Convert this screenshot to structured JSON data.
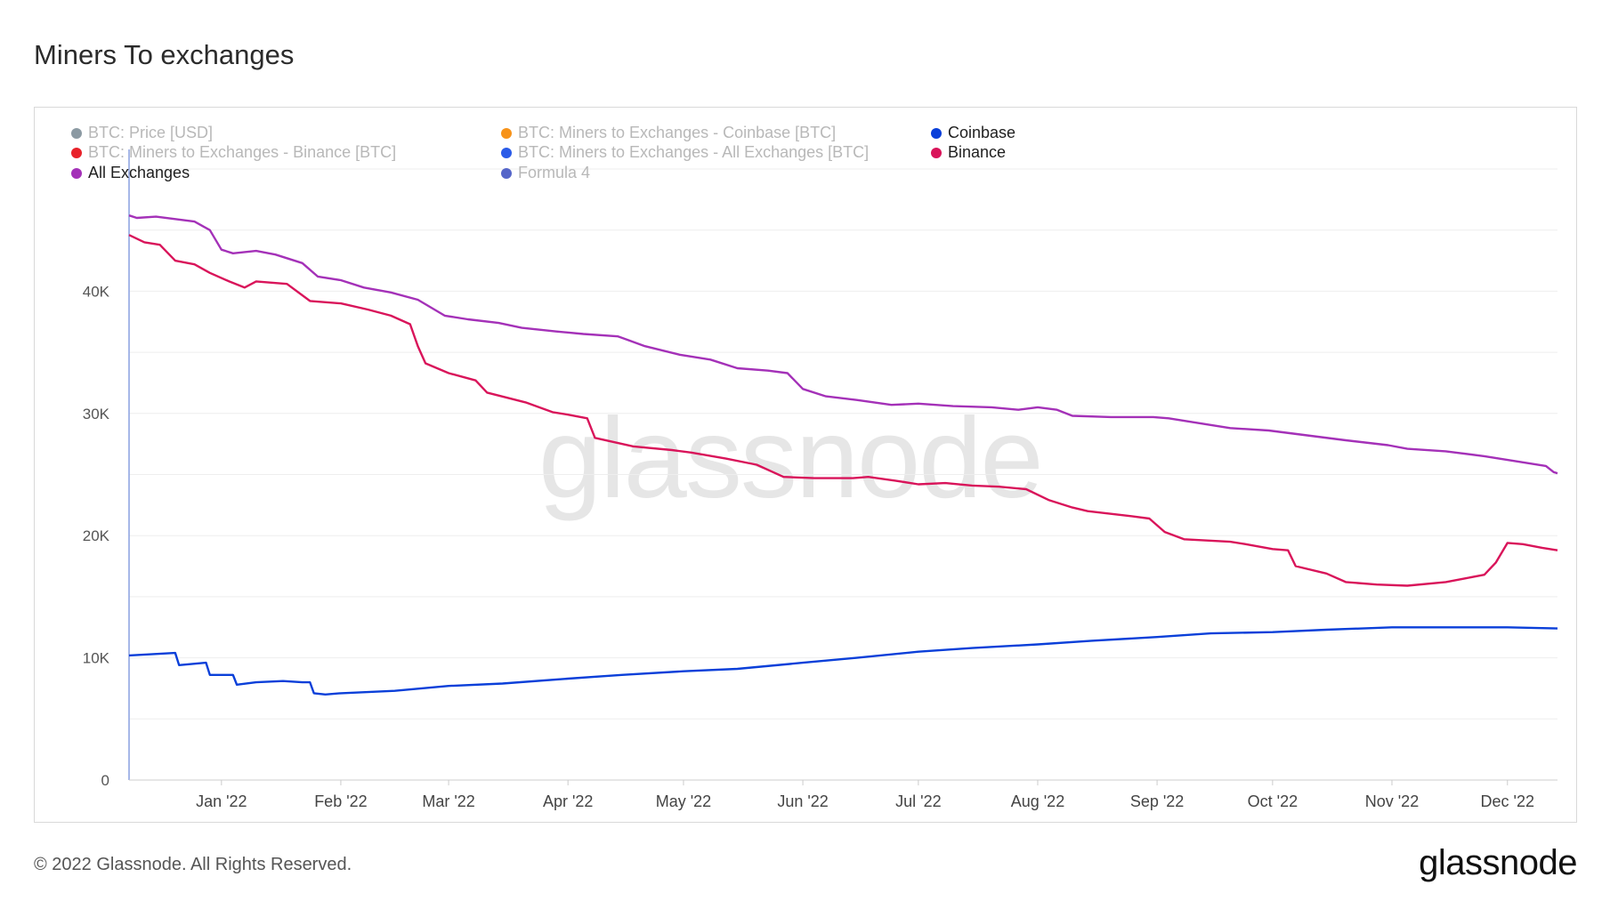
{
  "title": "Miners To exchanges",
  "watermark": "glassnode",
  "footer": {
    "copyright": "© 2022 Glassnode. All Rights Reserved.",
    "logo": "glassnode"
  },
  "legend": [
    {
      "label": "BTC: Price [USD]",
      "color": "#8c9aa3",
      "active": false
    },
    {
      "label": "BTC: Miners to Exchanges - Coinbase [BTC]",
      "color": "#f7931a",
      "active": false
    },
    {
      "label": "Coinbase",
      "color": "#0a3fd9",
      "active": true
    },
    {
      "label": "BTC: Miners to Exchanges - Binance [BTC]",
      "color": "#e8222a",
      "active": false
    },
    {
      "label": "BTC: Miners to Exchanges - All Exchanges [BTC]",
      "color": "#2a5be8",
      "active": false
    },
    {
      "label": "Binance",
      "color": "#d9145a",
      "active": true
    },
    {
      "label": "All Exchanges",
      "color": "#a431b8",
      "active": true
    },
    {
      "label": "Formula 4",
      "color": "#5566c9",
      "active": false
    }
  ],
  "chart_data": {
    "type": "line",
    "title": "Miners To exchanges",
    "xlabel": "",
    "ylabel": "",
    "ylim": [
      0,
      50000
    ],
    "y_ticks": [
      0,
      10000,
      20000,
      30000,
      40000
    ],
    "y_tick_labels": [
      "0",
      "10K",
      "20K",
      "30K",
      "40K"
    ],
    "x_range": [
      "2021-12-08",
      "2022-12-14"
    ],
    "x_ticks": [
      "2022-01-01",
      "2022-02-01",
      "2022-03-01",
      "2022-04-01",
      "2022-05-01",
      "2022-06-01",
      "2022-07-01",
      "2022-08-01",
      "2022-09-01",
      "2022-10-01",
      "2022-11-01",
      "2022-12-01"
    ],
    "x_tick_labels": [
      "Jan '22",
      "Feb '22",
      "Mar '22",
      "Apr '22",
      "May '22",
      "Jun '22",
      "Jul '22",
      "Aug '22",
      "Sep '22",
      "Oct '22",
      "Nov '22",
      "Dec '22"
    ],
    "grid": true,
    "legend_position": "top-left",
    "series": [
      {
        "name": "All Exchanges",
        "color": "#a431b8",
        "points": [
          [
            "2021-12-08",
            46200
          ],
          [
            "2021-12-10",
            46000
          ],
          [
            "2021-12-15",
            46100
          ],
          [
            "2021-12-20",
            45900
          ],
          [
            "2021-12-25",
            45700
          ],
          [
            "2021-12-29",
            45000
          ],
          [
            "2022-01-01",
            43400
          ],
          [
            "2022-01-04",
            43100
          ],
          [
            "2022-01-10",
            43300
          ],
          [
            "2022-01-15",
            43000
          ],
          [
            "2022-01-22",
            42300
          ],
          [
            "2022-01-26",
            41200
          ],
          [
            "2022-02-01",
            40900
          ],
          [
            "2022-02-07",
            40300
          ],
          [
            "2022-02-14",
            39900
          ],
          [
            "2022-02-21",
            39300
          ],
          [
            "2022-02-28",
            38000
          ],
          [
            "2022-03-06",
            37700
          ],
          [
            "2022-03-14",
            37400
          ],
          [
            "2022-03-20",
            37000
          ],
          [
            "2022-03-29",
            36700
          ],
          [
            "2022-04-05",
            36500
          ],
          [
            "2022-04-14",
            36300
          ],
          [
            "2022-04-21",
            35500
          ],
          [
            "2022-04-30",
            34800
          ],
          [
            "2022-05-08",
            34400
          ],
          [
            "2022-05-15",
            33700
          ],
          [
            "2022-05-23",
            33500
          ],
          [
            "2022-05-28",
            33300
          ],
          [
            "2022-06-01",
            32000
          ],
          [
            "2022-06-07",
            31400
          ],
          [
            "2022-06-15",
            31100
          ],
          [
            "2022-06-24",
            30700
          ],
          [
            "2022-07-01",
            30800
          ],
          [
            "2022-07-10",
            30600
          ],
          [
            "2022-07-20",
            30500
          ],
          [
            "2022-07-27",
            30300
          ],
          [
            "2022-08-01",
            30500
          ],
          [
            "2022-08-06",
            30300
          ],
          [
            "2022-08-10",
            29800
          ],
          [
            "2022-08-20",
            29700
          ],
          [
            "2022-08-31",
            29700
          ],
          [
            "2022-09-04",
            29600
          ],
          [
            "2022-09-10",
            29300
          ],
          [
            "2022-09-20",
            28800
          ],
          [
            "2022-09-30",
            28600
          ],
          [
            "2022-10-10",
            28200
          ],
          [
            "2022-10-20",
            27800
          ],
          [
            "2022-10-31",
            27400
          ],
          [
            "2022-11-05",
            27100
          ],
          [
            "2022-11-15",
            26900
          ],
          [
            "2022-11-25",
            26500
          ],
          [
            "2022-12-05",
            26000
          ],
          [
            "2022-12-11",
            25700
          ],
          [
            "2022-12-13",
            25200
          ],
          [
            "2022-12-14",
            25100
          ]
        ]
      },
      {
        "name": "Binance",
        "color": "#d9145a",
        "points": [
          [
            "2021-12-08",
            44600
          ],
          [
            "2021-12-12",
            44000
          ],
          [
            "2021-12-16",
            43800
          ],
          [
            "2021-12-20",
            42500
          ],
          [
            "2021-12-25",
            42200
          ],
          [
            "2021-12-29",
            41500
          ],
          [
            "2022-01-03",
            40800
          ],
          [
            "2022-01-07",
            40300
          ],
          [
            "2022-01-10",
            40800
          ],
          [
            "2022-01-18",
            40600
          ],
          [
            "2022-01-24",
            39200
          ],
          [
            "2022-02-01",
            39000
          ],
          [
            "2022-02-08",
            38500
          ],
          [
            "2022-02-14",
            38000
          ],
          [
            "2022-02-19",
            37300
          ],
          [
            "2022-02-21",
            35500
          ],
          [
            "2022-02-23",
            34100
          ],
          [
            "2022-03-01",
            33300
          ],
          [
            "2022-03-08",
            32700
          ],
          [
            "2022-03-11",
            31700
          ],
          [
            "2022-03-16",
            31300
          ],
          [
            "2022-03-21",
            30900
          ],
          [
            "2022-03-28",
            30100
          ],
          [
            "2022-04-01",
            29900
          ],
          [
            "2022-04-06",
            29600
          ],
          [
            "2022-04-08",
            28000
          ],
          [
            "2022-04-18",
            27300
          ],
          [
            "2022-04-28",
            27000
          ],
          [
            "2022-05-03",
            26800
          ],
          [
            "2022-05-12",
            26300
          ],
          [
            "2022-05-20",
            25800
          ],
          [
            "2022-05-27",
            24800
          ],
          [
            "2022-06-04",
            24700
          ],
          [
            "2022-06-14",
            24700
          ],
          [
            "2022-06-18",
            24800
          ],
          [
            "2022-06-25",
            24500
          ],
          [
            "2022-07-01",
            24200
          ],
          [
            "2022-07-08",
            24300
          ],
          [
            "2022-07-15",
            24100
          ],
          [
            "2022-07-22",
            24000
          ],
          [
            "2022-07-29",
            23800
          ],
          [
            "2022-08-04",
            22900
          ],
          [
            "2022-08-10",
            22300
          ],
          [
            "2022-08-14",
            22000
          ],
          [
            "2022-08-25",
            21600
          ],
          [
            "2022-08-30",
            21400
          ],
          [
            "2022-09-03",
            20300
          ],
          [
            "2022-09-08",
            19700
          ],
          [
            "2022-09-20",
            19500
          ],
          [
            "2022-09-24",
            19300
          ],
          [
            "2022-10-01",
            18900
          ],
          [
            "2022-10-05",
            18800
          ],
          [
            "2022-10-07",
            17500
          ],
          [
            "2022-10-15",
            16900
          ],
          [
            "2022-10-20",
            16200
          ],
          [
            "2022-10-28",
            16000
          ],
          [
            "2022-11-05",
            15900
          ],
          [
            "2022-11-15",
            16200
          ],
          [
            "2022-11-20",
            16500
          ],
          [
            "2022-11-25",
            16800
          ],
          [
            "2022-11-28",
            17800
          ],
          [
            "2022-12-01",
            19400
          ],
          [
            "2022-12-05",
            19300
          ],
          [
            "2022-12-10",
            19000
          ],
          [
            "2022-12-14",
            18800
          ]
        ]
      },
      {
        "name": "Coinbase",
        "color": "#0a3fd9",
        "points": [
          [
            "2021-12-08",
            10200
          ],
          [
            "2021-12-20",
            10400
          ],
          [
            "2021-12-21",
            9400
          ],
          [
            "2021-12-28",
            9600
          ],
          [
            "2021-12-29",
            8600
          ],
          [
            "2022-01-04",
            8600
          ],
          [
            "2022-01-05",
            7800
          ],
          [
            "2022-01-10",
            8000
          ],
          [
            "2022-01-17",
            8100
          ],
          [
            "2022-01-22",
            8000
          ],
          [
            "2022-01-24",
            8000
          ],
          [
            "2022-01-25",
            7100
          ],
          [
            "2022-01-28",
            7000
          ],
          [
            "2022-02-01",
            7100
          ],
          [
            "2022-02-15",
            7300
          ],
          [
            "2022-03-01",
            7700
          ],
          [
            "2022-03-15",
            7900
          ],
          [
            "2022-04-01",
            8300
          ],
          [
            "2022-04-15",
            8600
          ],
          [
            "2022-05-01",
            8900
          ],
          [
            "2022-05-15",
            9100
          ],
          [
            "2022-06-01",
            9600
          ],
          [
            "2022-06-15",
            10000
          ],
          [
            "2022-07-01",
            10500
          ],
          [
            "2022-07-15",
            10800
          ],
          [
            "2022-08-01",
            11100
          ],
          [
            "2022-08-15",
            11400
          ],
          [
            "2022-09-01",
            11700
          ],
          [
            "2022-09-15",
            12000
          ],
          [
            "2022-10-01",
            12100
          ],
          [
            "2022-10-15",
            12300
          ],
          [
            "2022-11-01",
            12500
          ],
          [
            "2022-11-15",
            12500
          ],
          [
            "2022-12-01",
            12500
          ],
          [
            "2022-12-14",
            12400
          ]
        ]
      }
    ]
  }
}
